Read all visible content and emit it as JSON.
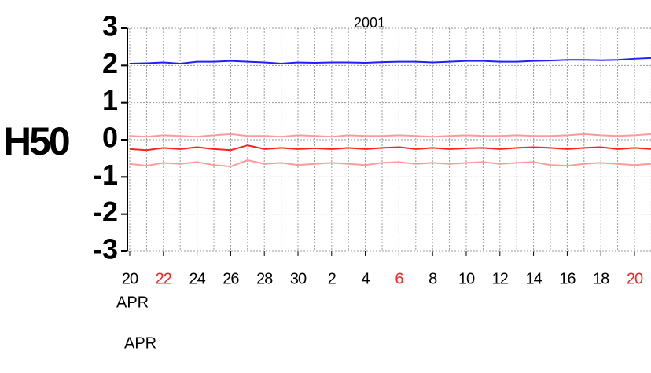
{
  "chart_data": {
    "type": "line",
    "title": "2001",
    "ylabel": "H50",
    "xlabel": [
      "APR",
      "APR"
    ],
    "categories": [
      "20",
      null,
      "22",
      null,
      "24",
      null,
      "26",
      null,
      "28",
      null,
      "30",
      null,
      "2",
      null,
      "4",
      null,
      "6",
      null,
      "8",
      null,
      "10",
      null,
      "12",
      null,
      "14",
      null,
      "16",
      null,
      "18",
      null,
      "20",
      null
    ],
    "category_colors": [
      "#000000",
      null,
      "#ff2020",
      null,
      "#000000",
      null,
      "#000000",
      null,
      "#000000",
      null,
      "#000000",
      null,
      "#000000",
      null,
      "#000000",
      null,
      "#ff2020",
      null,
      "#000000",
      null,
      "#000000",
      null,
      "#000000",
      null,
      "#000000",
      null,
      "#000000",
      null,
      "#000000",
      null,
      "#ff2020",
      null
    ],
    "series": [
      {
        "color": "#2020ff",
        "values": [
          2.05,
          2.06,
          2.08,
          2.05,
          2.1,
          2.1,
          2.12,
          2.1,
          2.08,
          2.05,
          2.08,
          2.07,
          2.08,
          2.08,
          2.07,
          2.09,
          2.1,
          2.1,
          2.08,
          2.1,
          2.12,
          2.12,
          2.1,
          2.1,
          2.12,
          2.13,
          2.15,
          2.15,
          2.14,
          2.15,
          2.18,
          2.2
        ]
      },
      {
        "color": "#ff9a9a",
        "values": [
          0.1,
          0.08,
          0.12,
          0.1,
          0.08,
          0.12,
          0.15,
          0.1,
          0.1,
          0.08,
          0.12,
          0.1,
          0.08,
          0.12,
          0.1,
          0.1,
          0.12,
          0.1,
          0.08,
          0.1,
          0.12,
          0.1,
          0.1,
          0.12,
          0.1,
          0.1,
          0.12,
          0.15,
          0.12,
          0.1,
          0.12,
          0.15
        ]
      },
      {
        "color": "#ff2020",
        "values": [
          -0.25,
          -0.28,
          -0.22,
          -0.25,
          -0.2,
          -0.25,
          -0.28,
          -0.15,
          -0.25,
          -0.22,
          -0.25,
          -0.23,
          -0.25,
          -0.22,
          -0.25,
          -0.22,
          -0.2,
          -0.25,
          -0.22,
          -0.25,
          -0.23,
          -0.22,
          -0.25,
          -0.22,
          -0.2,
          -0.22,
          -0.25,
          -0.22,
          -0.2,
          -0.25,
          -0.22,
          -0.25
        ]
      },
      {
        "color": "#ff9a9a",
        "values": [
          -0.65,
          -0.7,
          -0.62,
          -0.65,
          -0.6,
          -0.68,
          -0.72,
          -0.55,
          -0.65,
          -0.62,
          -0.68,
          -0.65,
          -0.62,
          -0.65,
          -0.68,
          -0.62,
          -0.6,
          -0.65,
          -0.62,
          -0.65,
          -0.62,
          -0.6,
          -0.65,
          -0.62,
          -0.6,
          -0.68,
          -0.7,
          -0.65,
          -0.62,
          -0.65,
          -0.68,
          -0.65
        ]
      }
    ],
    "ylim": [
      -3,
      3
    ],
    "yticks": [
      -3,
      -2,
      -1,
      0,
      1,
      2,
      3
    ],
    "grid": true
  }
}
